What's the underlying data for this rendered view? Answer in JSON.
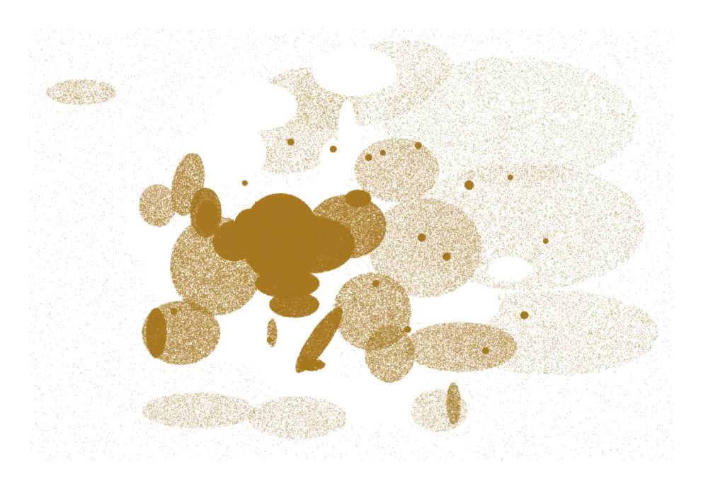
{
  "map": {
    "colors": {
      "background": "#ffffff",
      "dot": "#a87a22"
    }
  }
}
